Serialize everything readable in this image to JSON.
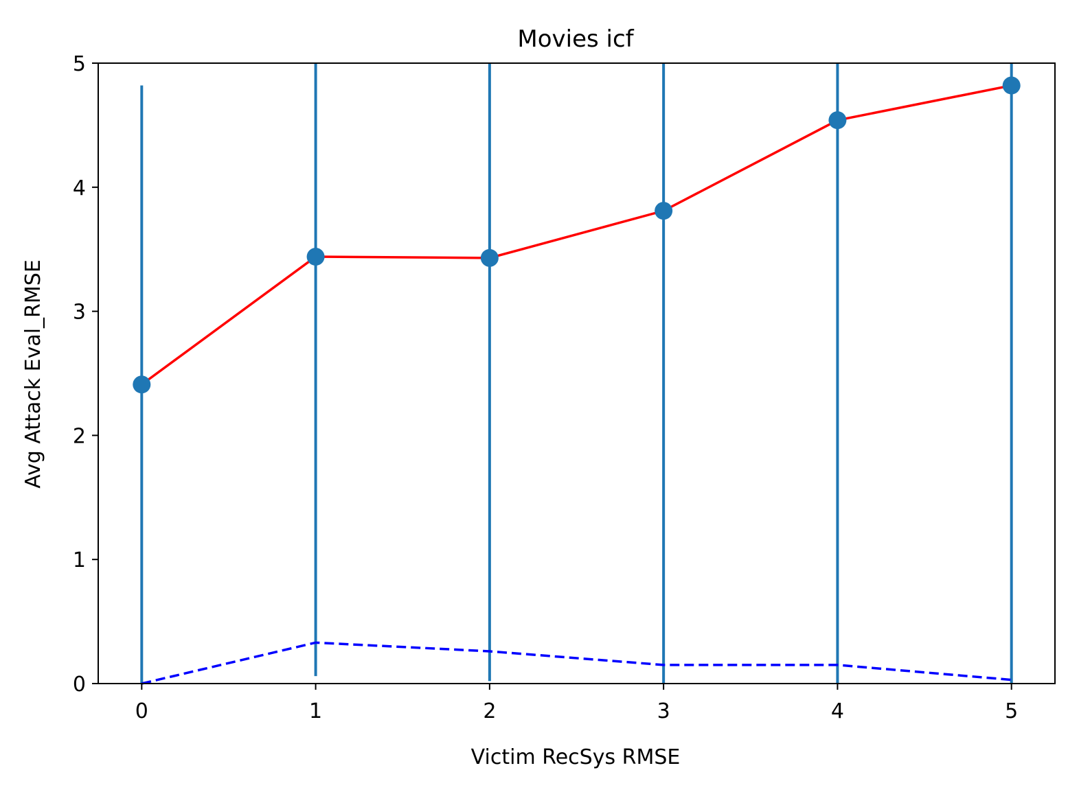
{
  "chart_data": {
    "type": "line",
    "title": "Movies icf",
    "xlabel": "Victim RecSys RMSE",
    "ylabel": "Avg Attack Eval_RMSE",
    "xlim": [
      -0.25,
      5.25
    ],
    "ylim": [
      0,
      5
    ],
    "xticks": [
      "0",
      "1",
      "2",
      "3",
      "4",
      "5"
    ],
    "yticks": [
      "0",
      "1",
      "2",
      "3",
      "4",
      "5"
    ],
    "grid": false,
    "legend": "none",
    "x": [
      0,
      1,
      2,
      3,
      4,
      5
    ],
    "series": [
      {
        "style": "solid-with-markers-and-errorbars",
        "line_color": "#ff0000",
        "marker_color": "#1f77b4",
        "values": [
          2.41,
          3.44,
          3.43,
          3.81,
          4.54,
          4.82
        ],
        "error_low": [
          0.0,
          0.06,
          0.02,
          0.0,
          0.0,
          0.0
        ],
        "error_high": [
          4.82,
          5.0,
          5.0,
          5.0,
          5.0,
          5.0
        ]
      },
      {
        "style": "dashed",
        "line_color": "#0000ff",
        "values": [
          0.0,
          0.33,
          0.26,
          0.15,
          0.15,
          0.03
        ]
      }
    ]
  }
}
